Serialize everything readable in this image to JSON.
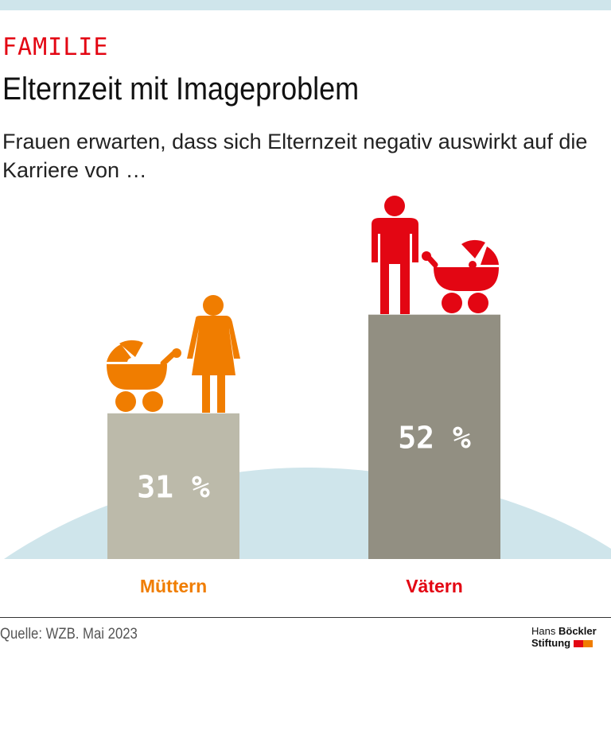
{
  "header": {
    "kicker": "FAMILIE",
    "title": "Elternzeit mit Imageproblem",
    "subtitle": "Frauen erwarten, dass sich Elternzeit negativ auswirkt auf die Karriere von …"
  },
  "chart_data": {
    "type": "bar",
    "categories": [
      "Müttern",
      "Vätern"
    ],
    "values": [
      31,
      52
    ],
    "labels": [
      "31 %",
      "52 %"
    ],
    "unit": "%",
    "ylim": [
      0,
      60
    ],
    "colors": {
      "bars": [
        "#bcbaaa",
        "#928f82"
      ],
      "categories": [
        "#f07d00",
        "#e30613"
      ],
      "hill": "#cfe5eb"
    },
    "icons": [
      "mother-with-pram-icon",
      "father-with-pram-icon"
    ]
  },
  "footer": {
    "source": "Quelle: WZB. Mai 2023",
    "logo_line1_a": "Hans",
    "logo_line1_b": "Böckler",
    "logo_line2": "Stiftung"
  }
}
